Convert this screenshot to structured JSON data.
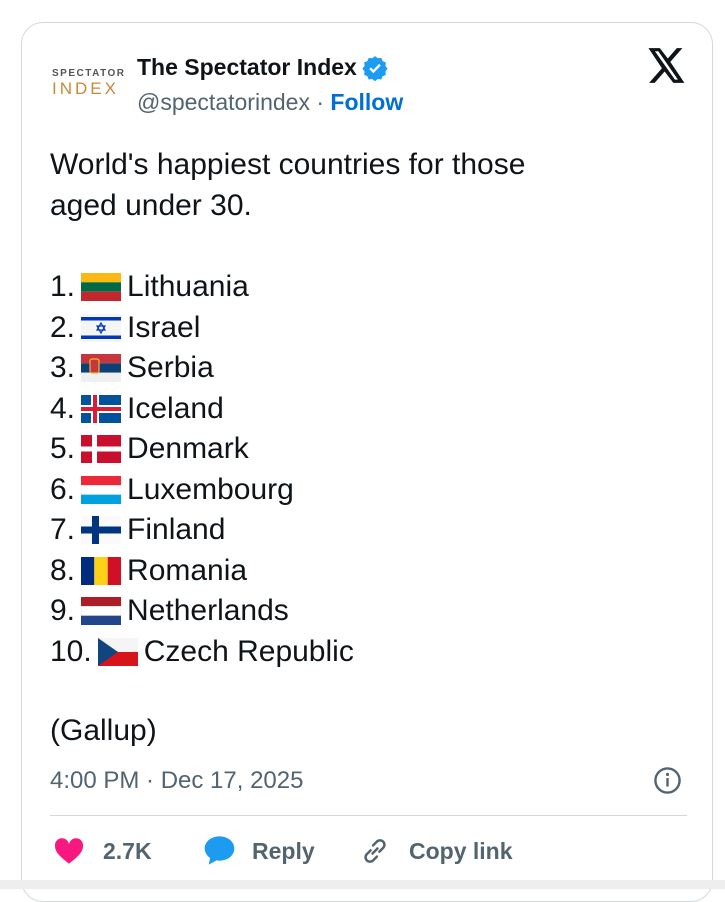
{
  "author": {
    "logo_top": "SPECTATOR",
    "logo_bottom": "INDEX",
    "name": "The Spectator Index",
    "handle": "@spectatorindex",
    "separator": "·",
    "follow": "Follow"
  },
  "post": {
    "text_lines": [
      "World's happiest countries for those",
      "aged under 30."
    ],
    "list": [
      {
        "rank": "1.",
        "country": "Lithuania"
      },
      {
        "rank": "2.",
        "country": "Israel"
      },
      {
        "rank": "3.",
        "country": "Serbia"
      },
      {
        "rank": "4.",
        "country": "Iceland"
      },
      {
        "rank": "5.",
        "country": "Denmark"
      },
      {
        "rank": "6.",
        "country": "Luxembourg"
      },
      {
        "rank": "7.",
        "country": "Finland"
      },
      {
        "rank": "8.",
        "country": "Romania"
      },
      {
        "rank": "9.",
        "country": "Netherlands"
      },
      {
        "rank": "10.",
        "country": "Czech Republic"
      }
    ],
    "source": "(Gallup)",
    "timestamp": "4:00 PM · Dec 17, 2025"
  },
  "actions": {
    "likes": "2.7K",
    "reply": "Reply",
    "copy_link": "Copy link"
  }
}
